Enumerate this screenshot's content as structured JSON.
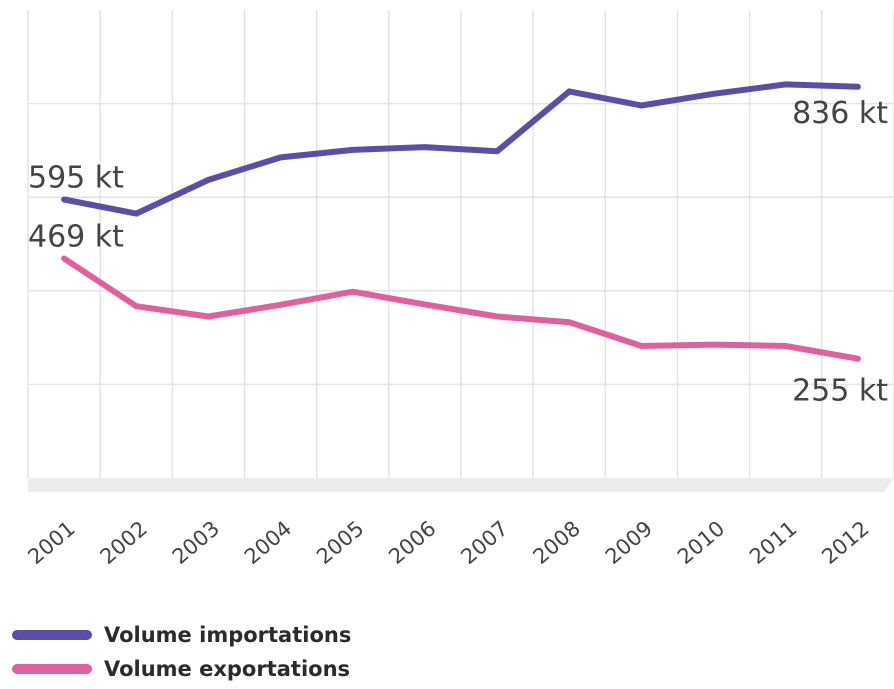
{
  "colors": {
    "imports": "#5a4ea8",
    "exports": "#e0609f",
    "grid": "#e3e3e3",
    "label": "#444444"
  },
  "chart_data": {
    "type": "line",
    "title": "",
    "xlabel": "",
    "ylabel": "",
    "x": [
      "2001",
      "2002",
      "2003",
      "2004",
      "2005",
      "2006",
      "2007",
      "2008",
      "2009",
      "2010",
      "2011",
      "2012"
    ],
    "ylim": [
      0,
      1000
    ],
    "grid": true,
    "legend": "bottom",
    "series": [
      {
        "key": "imports",
        "name": "Volume importations",
        "values": [
          595,
          565,
          637,
          685,
          701,
          707,
          698,
          826,
          796,
          821,
          841,
          836
        ],
        "start_label": "595 kt",
        "end_label": "836 kt"
      },
      {
        "key": "exports",
        "name": "Volume exportations",
        "values": [
          469,
          367,
          345,
          370,
          398,
          371,
          345,
          333,
          282,
          285,
          282,
          255
        ],
        "start_label": "469 kt",
        "end_label": "255 kt"
      }
    ]
  }
}
